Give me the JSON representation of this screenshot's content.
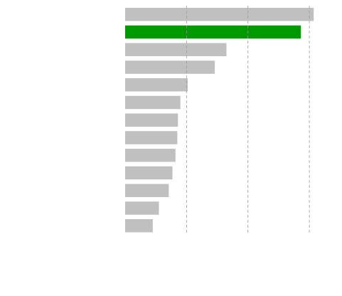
{
  "chart_data": {
    "type": "bar",
    "orientation": "horizontal",
    "title": "",
    "xlabel": "",
    "ylabel": "",
    "xlim": [
      0,
      3.08
    ],
    "gridlines_at": [
      1,
      2,
      3
    ],
    "highlight_index": 1,
    "values": [
      3.07,
      2.86,
      1.65,
      1.46,
      1.02,
      0.9,
      0.86,
      0.85,
      0.82,
      0.77,
      0.71,
      0.55,
      0.45
    ],
    "colors": {
      "bar": "#c0c0c0",
      "highlight": "#009900",
      "grid": "#999999",
      "background": "#ffffff"
    }
  }
}
